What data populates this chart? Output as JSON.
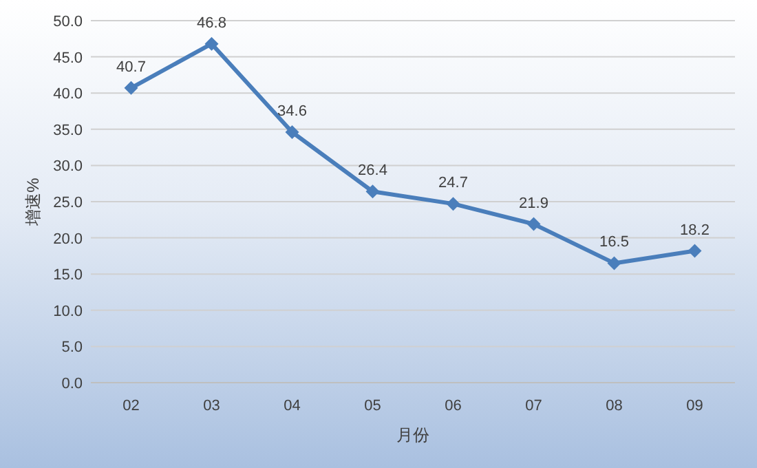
{
  "chart_data": {
    "type": "line",
    "xlabel": "月份",
    "ylabel": "增速%",
    "categories": [
      "02",
      "03",
      "04",
      "05",
      "06",
      "07",
      "08",
      "09"
    ],
    "series": [
      {
        "color": "#4a7ebb",
        "values": [
          40.7,
          46.8,
          34.6,
          26.4,
          24.7,
          21.9,
          16.5,
          18.2
        ]
      }
    ],
    "ylim": [
      0,
      50
    ],
    "yticks": [
      {
        "value": 0,
        "label": "0.0"
      },
      {
        "value": 5,
        "label": "5.0"
      },
      {
        "value": 10,
        "label": "10.0"
      },
      {
        "value": 15,
        "label": "15.0"
      },
      {
        "value": 20,
        "label": "20.0"
      },
      {
        "value": 25,
        "label": "25.0"
      },
      {
        "value": 30,
        "label": "30.0"
      },
      {
        "value": 35,
        "label": "35.0"
      },
      {
        "value": 40,
        "label": "40.0"
      },
      {
        "value": 45,
        "label": "45.0"
      },
      {
        "value": 50,
        "label": "50.0"
      }
    ],
    "grid": "y",
    "marker": "diamond",
    "line_style": "solid",
    "data_labels": true
  }
}
